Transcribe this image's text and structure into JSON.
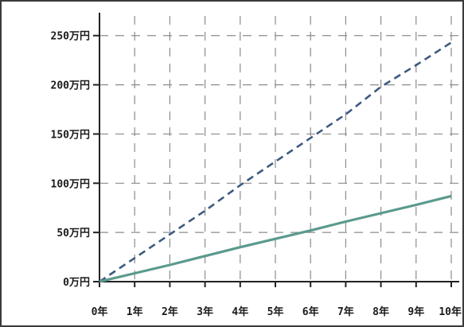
{
  "chart_data": {
    "type": "line",
    "title": "",
    "xlabel": "",
    "ylabel": "",
    "x": [
      0,
      1,
      2,
      3,
      4,
      5,
      6,
      7,
      8,
      9,
      10
    ],
    "x_tick_labels": [
      "0年",
      "1年",
      "2年",
      "3年",
      "4年",
      "5年",
      "6年",
      "7年",
      "8年",
      "9年",
      "10年"
    ],
    "y_ticks": [
      0,
      50,
      100,
      150,
      200,
      250
    ],
    "y_tick_labels": [
      "0万円",
      "50万円",
      "100万円",
      "150万円",
      "200万円",
      "250万円"
    ],
    "xlim": [
      0,
      10
    ],
    "ylim": [
      0,
      270
    ],
    "grid": true,
    "grid_style": "dashed",
    "series": [
      {
        "values": [
          0,
          24,
          48,
          72,
          98,
          122,
          146,
          170,
          198,
          220,
          243
        ],
        "color": "#3d5a80",
        "line_style": "dashed"
      },
      {
        "values": [
          0,
          8.5,
          17,
          26,
          35,
          43.5,
          52,
          61,
          69.5,
          78,
          87
        ],
        "color": "#5a9a8e",
        "line_style": "solid"
      }
    ]
  }
}
